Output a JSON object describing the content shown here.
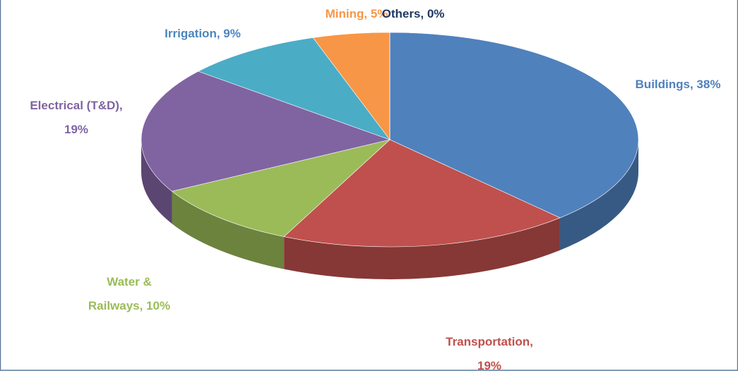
{
  "chart_data": {
    "type": "pie",
    "values": [
      38,
      19,
      10,
      19,
      9,
      5,
      0
    ],
    "value_labels": [
      "Buildings, 38%",
      "Transportation,\n19%",
      "Water &\nRailways, 10%",
      "Electrical (T&D),\n19%",
      "Irrigation, 9%",
      "Mining, 5%",
      "Others, 0%"
    ],
    "colors": [
      "#4f81bd",
      "#c0504d",
      "#9bbb59",
      "#8064a2",
      "#4bacc6",
      "#f79646",
      "#1f3864"
    ],
    "label_colors": [
      "#4f81bd",
      "#c0504d",
      "#9bbb59",
      "#8064a2",
      "#4a86c0",
      "#f79646",
      "#1f3864"
    ]
  }
}
